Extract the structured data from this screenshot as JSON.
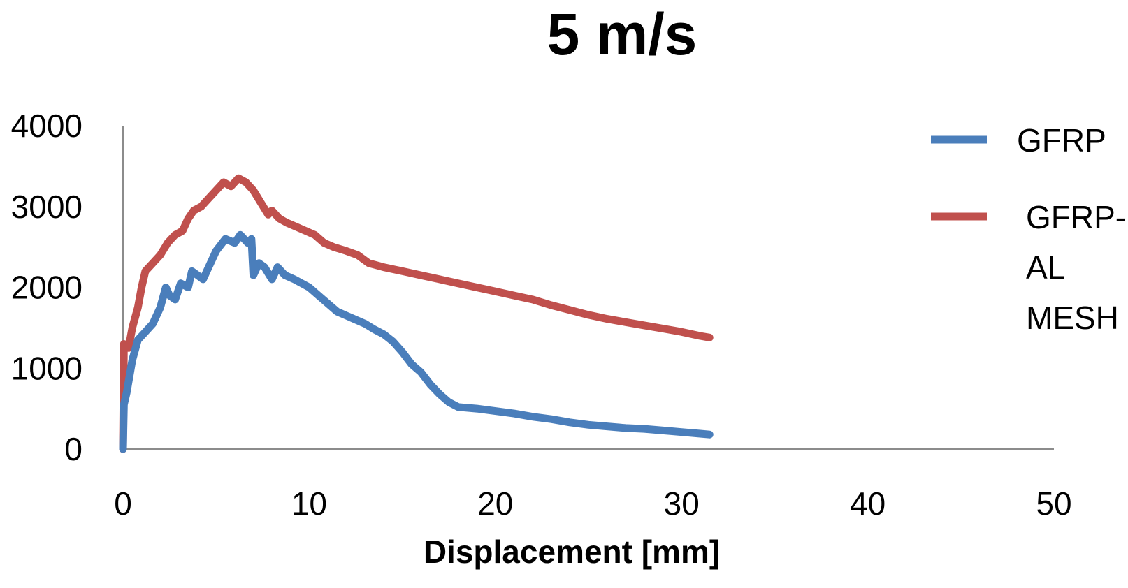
{
  "chart_data": {
    "type": "line",
    "title": "5 m/s",
    "xlabel": "Displacement [mm]",
    "ylabel": "",
    "xlim": [
      0,
      50
    ],
    "ylim": [
      0,
      4000
    ],
    "x_ticks": [
      "0",
      "10",
      "20",
      "30",
      "40",
      "50"
    ],
    "y_ticks": [
      "0",
      "1000",
      "2000",
      "3000",
      "4000"
    ],
    "grid": false,
    "legend_position": "right",
    "series": [
      {
        "name": "GFRP",
        "color": "#4a7ebb",
        "points": [
          [
            0,
            0
          ],
          [
            0.05,
            550
          ],
          [
            0.2,
            700
          ],
          [
            0.5,
            1100
          ],
          [
            0.8,
            1350
          ],
          [
            1.2,
            1450
          ],
          [
            1.6,
            1550
          ],
          [
            2.0,
            1750
          ],
          [
            2.3,
            2000
          ],
          [
            2.5,
            1900
          ],
          [
            2.8,
            1850
          ],
          [
            3.1,
            2050
          ],
          [
            3.5,
            2000
          ],
          [
            3.7,
            2200
          ],
          [
            4.0,
            2150
          ],
          [
            4.3,
            2100
          ],
          [
            4.6,
            2250
          ],
          [
            5.0,
            2450
          ],
          [
            5.5,
            2600
          ],
          [
            6.0,
            2550
          ],
          [
            6.3,
            2650
          ],
          [
            6.7,
            2550
          ],
          [
            6.9,
            2600
          ],
          [
            7.0,
            2150
          ],
          [
            7.3,
            2300
          ],
          [
            7.6,
            2250
          ],
          [
            8.0,
            2100
          ],
          [
            8.3,
            2250
          ],
          [
            8.7,
            2150
          ],
          [
            9.2,
            2100
          ],
          [
            9.6,
            2050
          ],
          [
            10.0,
            2000
          ],
          [
            10.5,
            1900
          ],
          [
            11.0,
            1800
          ],
          [
            11.5,
            1700
          ],
          [
            12.0,
            1650
          ],
          [
            12.5,
            1600
          ],
          [
            13.0,
            1550
          ],
          [
            13.5,
            1480
          ],
          [
            14.0,
            1420
          ],
          [
            14.5,
            1330
          ],
          [
            15.0,
            1200
          ],
          [
            15.5,
            1050
          ],
          [
            16.0,
            950
          ],
          [
            16.5,
            800
          ],
          [
            17.0,
            680
          ],
          [
            17.5,
            580
          ],
          [
            18.0,
            520
          ],
          [
            19.0,
            500
          ],
          [
            20.0,
            470
          ],
          [
            21.0,
            440
          ],
          [
            22.0,
            400
          ],
          [
            23.0,
            370
          ],
          [
            24.0,
            330
          ],
          [
            25.0,
            300
          ],
          [
            26.0,
            280
          ],
          [
            27.0,
            260
          ],
          [
            28.0,
            250
          ],
          [
            29.0,
            230
          ],
          [
            30.0,
            210
          ],
          [
            31.0,
            190
          ],
          [
            31.5,
            180
          ]
        ]
      },
      {
        "name": "GFRP-\nAL\nMESH",
        "color": "#c0504d",
        "points": [
          [
            0,
            0
          ],
          [
            0.05,
            1300
          ],
          [
            0.3,
            1250
          ],
          [
            0.5,
            1500
          ],
          [
            0.8,
            1750
          ],
          [
            1.0,
            2000
          ],
          [
            1.2,
            2200
          ],
          [
            1.6,
            2300
          ],
          [
            2.0,
            2400
          ],
          [
            2.4,
            2550
          ],
          [
            2.8,
            2650
          ],
          [
            3.2,
            2700
          ],
          [
            3.5,
            2850
          ],
          [
            3.8,
            2950
          ],
          [
            4.2,
            3000
          ],
          [
            4.6,
            3100
          ],
          [
            5.0,
            3200
          ],
          [
            5.4,
            3300
          ],
          [
            5.8,
            3250
          ],
          [
            6.2,
            3350
          ],
          [
            6.6,
            3300
          ],
          [
            7.0,
            3200
          ],
          [
            7.4,
            3050
          ],
          [
            7.8,
            2900
          ],
          [
            8.0,
            2950
          ],
          [
            8.4,
            2850
          ],
          [
            8.8,
            2800
          ],
          [
            9.3,
            2750
          ],
          [
            9.8,
            2700
          ],
          [
            10.3,
            2650
          ],
          [
            10.8,
            2550
          ],
          [
            11.3,
            2500
          ],
          [
            12.0,
            2450
          ],
          [
            12.6,
            2400
          ],
          [
            13.2,
            2300
          ],
          [
            14.0,
            2250
          ],
          [
            15.0,
            2200
          ],
          [
            16.0,
            2150
          ],
          [
            17.0,
            2100
          ],
          [
            18.0,
            2050
          ],
          [
            19.0,
            2000
          ],
          [
            20.0,
            1950
          ],
          [
            21.0,
            1900
          ],
          [
            22.0,
            1850
          ],
          [
            23.0,
            1780
          ],
          [
            24.0,
            1720
          ],
          [
            25.0,
            1660
          ],
          [
            26.0,
            1610
          ],
          [
            27.0,
            1570
          ],
          [
            28.0,
            1530
          ],
          [
            29.0,
            1490
          ],
          [
            30.0,
            1450
          ],
          [
            31.0,
            1400
          ],
          [
            31.5,
            1380
          ]
        ]
      }
    ]
  }
}
